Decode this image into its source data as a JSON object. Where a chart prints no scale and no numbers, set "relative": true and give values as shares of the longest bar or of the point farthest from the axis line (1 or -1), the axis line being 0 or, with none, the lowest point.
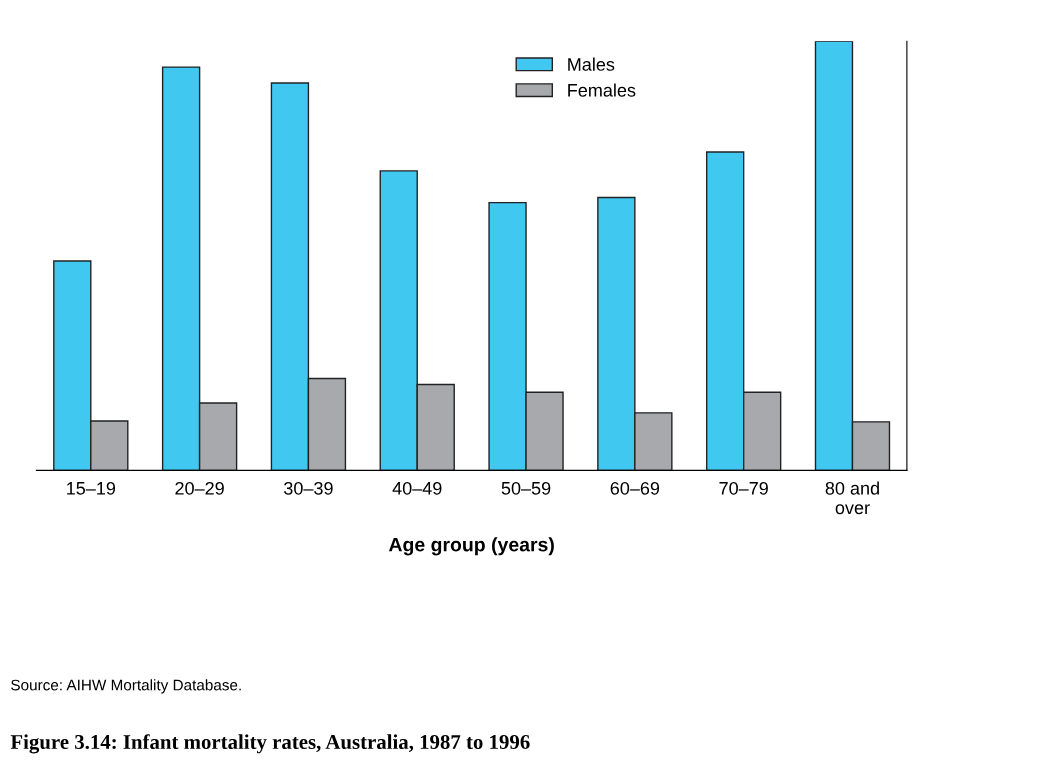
{
  "chart_data": {
    "type": "bar",
    "relative": true,
    "title": "Figure 3.14: Infant mortality rates, Australia, 1987 to 1996",
    "xlabel": "Age group (years)",
    "categories": [
      "15–19",
      "20–29",
      "30–39",
      "40–49",
      "50–59",
      "60–69",
      "70–79",
      "80 and over"
    ],
    "series": [
      {
        "name": "Males",
        "color": "#40c8f0",
        "values": [
          0.488,
          0.94,
          0.903,
          0.698,
          0.624,
          0.636,
          0.742,
          1
        ]
      },
      {
        "name": "Females",
        "color": "#a7a9ac",
        "values": [
          0.115,
          0.157,
          0.214,
          0.2,
          0.182,
          0.134,
          0.182,
          0.113
        ]
      }
    ],
    "legend": "top",
    "annotations": [
      "Source: AIHW Mortality Database."
    ]
  }
}
